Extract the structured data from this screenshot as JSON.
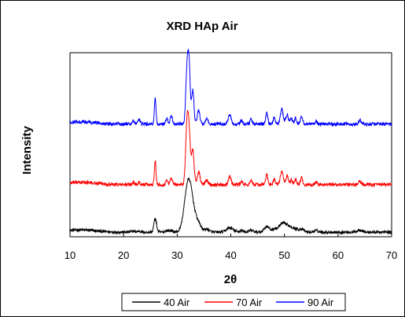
{
  "chart_data": {
    "type": "line",
    "title": "XRD HAp Air",
    "xlabel": "2θ",
    "ylabel": "Intensity",
    "xlim": [
      10,
      70
    ],
    "x_ticks": [
      "10",
      "20",
      "30",
      "40",
      "50",
      "60",
      "70"
    ],
    "y_ticks_labeled": false,
    "grid": false,
    "legend_position": "bottom",
    "peaks_2theta": [
      21.8,
      22.9,
      25.9,
      28.1,
      28.9,
      31.8,
      32.2,
      32.9,
      34.0,
      35.5,
      39.8,
      42.0,
      43.8,
      46.7,
      48.1,
      49.5,
      50.5,
      51.3,
      52.1,
      53.2,
      55.9,
      64.1
    ],
    "series": [
      {
        "name": "40 Air",
        "color": "#000000",
        "baseline": 1.0,
        "noise": 0.8,
        "peak_heights": [
          0.3,
          0.3,
          3.6,
          0.4,
          0.4,
          7.0,
          6.0,
          4.5,
          2.0,
          0.8,
          1.2,
          0.4,
          0.5,
          1.5,
          0.8,
          2.0,
          1.4,
          0.8,
          0.8,
          0.8,
          0.4,
          0.6
        ],
        "peak_widths": [
          0.3,
          0.3,
          0.25,
          0.35,
          0.35,
          0.65,
          0.6,
          0.6,
          0.5,
          0.45,
          0.6,
          0.4,
          0.4,
          0.5,
          0.4,
          0.6,
          0.55,
          0.4,
          0.45,
          0.45,
          0.4,
          0.5
        ]
      },
      {
        "name": "70 Air",
        "color": "#ff0000",
        "baseline": 1.1,
        "noise": 0.9,
        "peak_heights": [
          0.6,
          0.6,
          6.5,
          1.2,
          1.8,
          14.0,
          13.0,
          9.0,
          3.5,
          1.2,
          2.2,
          0.8,
          1.0,
          2.6,
          1.5,
          3.6,
          2.2,
          1.2,
          1.4,
          1.8,
          0.7,
          0.9
        ],
        "peak_widths": [
          0.2,
          0.2,
          0.15,
          0.2,
          0.2,
          0.25,
          0.25,
          0.25,
          0.25,
          0.25,
          0.25,
          0.2,
          0.2,
          0.2,
          0.2,
          0.25,
          0.25,
          0.2,
          0.2,
          0.2,
          0.2,
          0.25
        ]
      },
      {
        "name": "90 Air",
        "color": "#0000ff",
        "baseline": 1.1,
        "noise": 0.9,
        "peak_heights": [
          0.8,
          1.2,
          6.8,
          1.5,
          2.2,
          13.0,
          16.0,
          9.0,
          3.6,
          1.4,
          2.4,
          0.8,
          1.2,
          2.8,
          1.6,
          4.0,
          2.6,
          1.4,
          1.6,
          2.0,
          0.8,
          1.0
        ],
        "peak_widths": [
          0.2,
          0.2,
          0.15,
          0.2,
          0.2,
          0.22,
          0.22,
          0.22,
          0.25,
          0.25,
          0.25,
          0.2,
          0.2,
          0.2,
          0.2,
          0.25,
          0.25,
          0.2,
          0.2,
          0.2,
          0.2,
          0.25
        ]
      }
    ]
  }
}
